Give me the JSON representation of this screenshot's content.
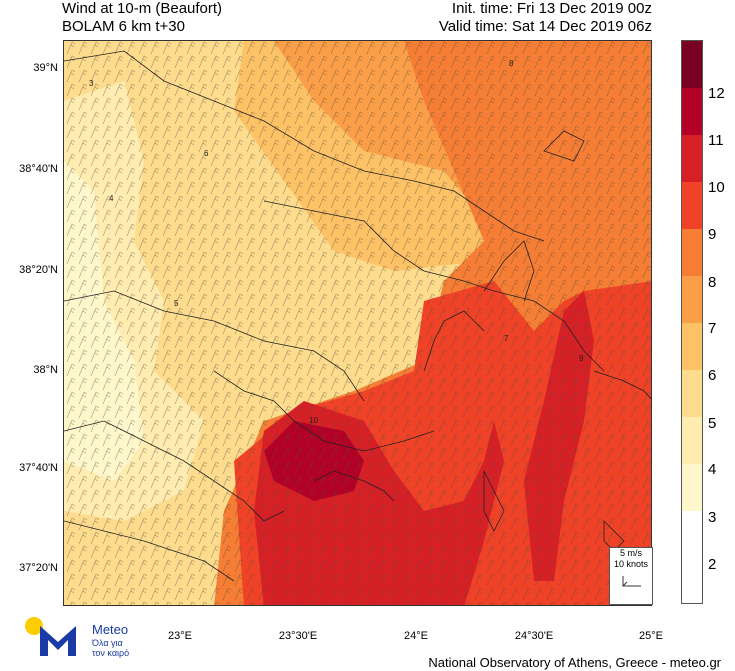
{
  "header": {
    "title_line1": "Wind at 10-m (Beaufort)",
    "title_line2": "BOLAM 6 km t+30",
    "init_time": "Init. time: Fri 13 Dec 2019 00z",
    "valid_time": "Valid time: Sat 14 Dec 2019 06z"
  },
  "axes": {
    "lat_labels": [
      "39°N",
      "38°40'N",
      "38°20'N",
      "38°N",
      "37°40'N",
      "37°20'N"
    ],
    "lon_labels": [
      "23°E",
      "23°30'E",
      "24°E",
      "24°30'E",
      "25°E"
    ]
  },
  "colorbar": {
    "levels": [
      "12",
      "11",
      "10",
      "9",
      "8",
      "7",
      "6",
      "5",
      "4",
      "3",
      "2"
    ],
    "colors": [
      "#7a0021",
      "#b30026",
      "#d71f26",
      "#ef4227",
      "#f57d34",
      "#fa9e47",
      "#fdc266",
      "#fddc8e",
      "#ffecb0",
      "#fff7cc",
      "#ffffff"
    ]
  },
  "reference": {
    "speed": "5 m/s",
    "knots": "10 knots"
  },
  "contour_labels": [
    "3",
    "4",
    "5",
    "6",
    "7",
    "8",
    "9",
    "10"
  ],
  "logo": {
    "name": "Meteo",
    "tagline_1": "Όλα για",
    "tagline_2": "τον καιρό"
  },
  "footer": "National Observatory of Athens, Greece - meteo.gr"
}
